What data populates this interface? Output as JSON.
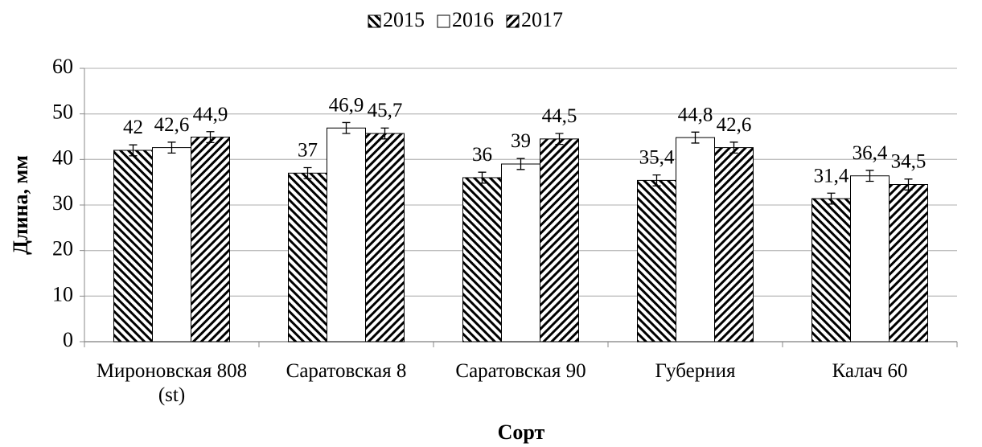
{
  "chart_data": {
    "type": "bar",
    "x_label": "Сорт",
    "y_label": "Длина, мм",
    "categories": [
      "Мироновская 808 (st)",
      "Саратовская 8",
      "Саратовская 90",
      "Губерния",
      "Калач 60"
    ],
    "series": [
      {
        "name": "2015",
        "color": "#000000",
        "pattern": "diag-down",
        "values": [
          42,
          37,
          36,
          35.4,
          31.4
        ],
        "value_labels": [
          "42",
          "37",
          "36",
          "35,4",
          "31,4"
        ],
        "errors": [
          1.2,
          1.2,
          1.2,
          1.2,
          1.2
        ]
      },
      {
        "name": "2016",
        "color": "#000000",
        "pattern": "none",
        "values": [
          42.6,
          46.9,
          39,
          44.8,
          36.4
        ],
        "value_labels": [
          "42,6",
          "46,9",
          "39",
          "44,8",
          "36,4"
        ],
        "errors": [
          1.2,
          1.2,
          1.2,
          1.2,
          1.2
        ]
      },
      {
        "name": "2017",
        "color": "#000000",
        "pattern": "diag-up",
        "values": [
          44.9,
          45.7,
          44.5,
          42.6,
          34.5
        ],
        "value_labels": [
          "44,9",
          "45,7",
          "44,5",
          "42,6",
          "34,5"
        ],
        "errors": [
          1.2,
          1.2,
          1.2,
          1.2,
          1.2
        ]
      }
    ],
    "ylim": [
      0,
      60
    ],
    "yticks": [
      0,
      10,
      20,
      30,
      40,
      50,
      60
    ],
    "grid": true,
    "legend": "top"
  }
}
